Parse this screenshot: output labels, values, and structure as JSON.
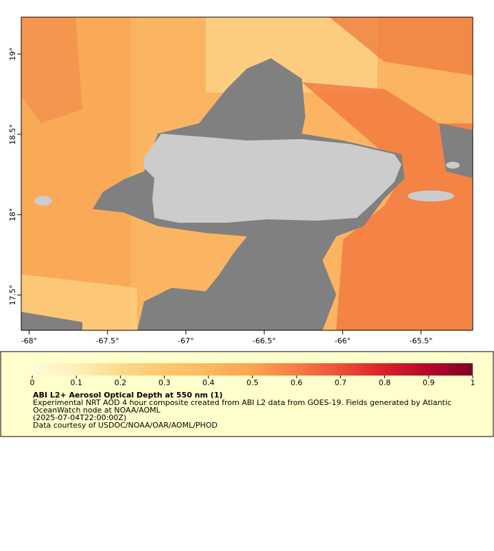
{
  "map": {
    "xlim": [
      -68.05,
      -65.17
    ],
    "ylim": [
      17.28,
      19.23
    ],
    "xticks": [
      {
        "value": -68,
        "label": "-68°"
      },
      {
        "value": -67.5,
        "label": "-67.5°"
      },
      {
        "value": -67,
        "label": "-67°"
      },
      {
        "value": -66.5,
        "label": "-66.5°"
      },
      {
        "value": -66,
        "label": "-66°"
      },
      {
        "value": -65.5,
        "label": "-65.5°"
      }
    ],
    "yticks": [
      {
        "value": 17.5,
        "label": "17.5°"
      },
      {
        "value": 18,
        "label": "18°"
      },
      {
        "value": 18.5,
        "label": "18.5°"
      },
      {
        "value": 19,
        "label": "19°"
      }
    ]
  },
  "colorbar": {
    "lim": [
      0,
      1
    ],
    "ticks": [
      0,
      0.1,
      0.2,
      0.3,
      0.4,
      0.5,
      0.6,
      0.7,
      0.8,
      0.9,
      1
    ],
    "colors": [
      "#fffbd8",
      "#fff0b8",
      "#fed98a",
      "#fdc66e",
      "#fdb75e",
      "#fba44e",
      "#f57c45",
      "#ec4f38",
      "#d9202a",
      "#b3082b",
      "#7f0026"
    ]
  },
  "caption": {
    "title": "ABI L2+ Aerosol Optical Depth at 550 nm (1)",
    "lines": [
      "Experimental NRT AOD 4 hour composite created from ABI L2 data from GOES-19. Fields generated by Atlantic",
      "OceanWatch node at NOAA/AOML",
      "(2025-07-04T22:00:00Z)",
      "Data courtesy of USDOC/NOAA/OAR/AOML/PHOD"
    ]
  }
}
